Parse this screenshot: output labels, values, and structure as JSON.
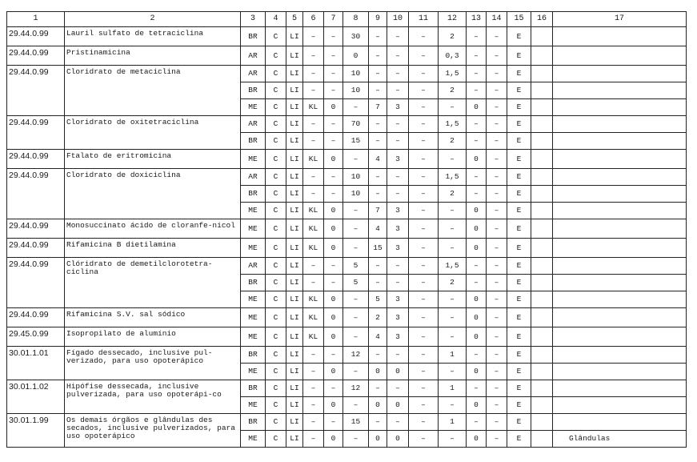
{
  "headers": [
    "1",
    "2",
    "3",
    "4",
    "5",
    "6",
    "7",
    "8",
    "9",
    "10",
    "11",
    "12",
    "13",
    "14",
    "15",
    "16",
    "17"
  ],
  "groups": [
    {
      "code": "29.44.0.99",
      "description": "Lauril sulfato de tetraciclina",
      "rows": [
        [
          "BR",
          "C",
          "LI",
          "–",
          "–",
          "30",
          "–",
          "–",
          "–",
          "2",
          "–",
          "–",
          "E",
          "",
          ""
        ]
      ]
    },
    {
      "code": "29.44.0.99",
      "description": "Pristinamicina",
      "rows": [
        [
          "AR",
          "C",
          "LI",
          "–",
          "–",
          "0",
          "–",
          "–",
          "–",
          "0,3",
          "–",
          "–",
          "E",
          "",
          ""
        ]
      ]
    },
    {
      "code": "29.44.0.99",
      "description": "Cloridrato de metaciclina",
      "rows": [
        [
          "AR",
          "C",
          "LI",
          "–",
          "–",
          "10",
          "–",
          "–",
          "–",
          "1,5",
          "–",
          "–",
          "E",
          "",
          ""
        ],
        [
          "BR",
          "C",
          "LI",
          "–",
          "–",
          "10",
          "–",
          "–",
          "–",
          "2",
          "–",
          "–",
          "E",
          "",
          ""
        ],
        [
          "ME",
          "C",
          "LI",
          "KL",
          "0",
          "–",
          "7",
          "3",
          "–",
          "–",
          "0",
          "–",
          "E",
          "",
          ""
        ]
      ]
    },
    {
      "code": "29.44.0.99",
      "description": "Cloridrato de oxitetraciclina",
      "rows": [
        [
          "AR",
          "C",
          "LI",
          "–",
          "–",
          "70",
          "–",
          "–",
          "–",
          "1,5",
          "–",
          "–",
          "E",
          "",
          ""
        ],
        [
          "BR",
          "C",
          "LI",
          "–",
          "–",
          "15",
          "–",
          "–",
          "–",
          "2",
          "–",
          "–",
          "E",
          "",
          ""
        ]
      ]
    },
    {
      "code": "29.44.0.99",
      "description": "Ftalato de eritromicina",
      "rows": [
        [
          "ME",
          "C",
          "LI",
          "KL",
          "0",
          "–",
          "4",
          "3",
          "–",
          "–",
          "0",
          "–",
          "E",
          "",
          ""
        ]
      ]
    },
    {
      "code": "29.44.0.99",
      "description": "Cloridrato de doxiciclina",
      "rows": [
        [
          "AR",
          "C",
          "LI",
          "–",
          "–",
          "10",
          "–",
          "–",
          "–",
          "1,5",
          "–",
          "–",
          "E",
          "",
          ""
        ],
        [
          "BR",
          "C",
          "LI",
          "–",
          "–",
          "10",
          "–",
          "–",
          "–",
          "2",
          "–",
          "–",
          "E",
          "",
          ""
        ],
        [
          "ME",
          "C",
          "LI",
          "KL",
          "0",
          "–",
          "7",
          "3",
          "–",
          "–",
          "0",
          "–",
          "E",
          "",
          ""
        ]
      ]
    },
    {
      "code": "29.44.0.99",
      "description": "Monosuccinato ácido de cloranfe-nicol",
      "rows": [
        [
          "ME",
          "C",
          "LI",
          "KL",
          "0",
          "–",
          "4",
          "3",
          "–",
          "–",
          "0",
          "–",
          "E",
          "",
          ""
        ]
      ]
    },
    {
      "code": "29.44.0.99",
      "description": "Rifamicina B dietilamina",
      "rows": [
        [
          "ME",
          "C",
          "LI",
          "KL",
          "0",
          "–",
          "15",
          "3",
          "–",
          "–",
          "0",
          "–",
          "E",
          "",
          ""
        ]
      ]
    },
    {
      "code": "29.44.0.99",
      "description": "Clóridrato de demetilclorotetra-ciclina",
      "rows": [
        [
          "AR",
          "C",
          "LI",
          "–",
          "–",
          "5",
          "–",
          "–",
          "–",
          "1,5",
          "–",
          "–",
          "E",
          "",
          ""
        ],
        [
          "BR",
          "C",
          "LI",
          "–",
          "–",
          "5",
          "–",
          "–",
          "–",
          "2",
          "–",
          "–",
          "E",
          "",
          ""
        ],
        [
          "ME",
          "C",
          "LI",
          "KL",
          "0",
          "–",
          "5",
          "3",
          "–",
          "–",
          "0",
          "–",
          "E",
          "",
          ""
        ]
      ]
    },
    {
      "code": "29.44.0.99",
      "description": "Rifamicina S.V. sal sódico",
      "rows": [
        [
          "ME",
          "C",
          "LI",
          "KL",
          "0",
          "–",
          "2",
          "3",
          "–",
          "–",
          "0",
          "–",
          "E",
          "",
          ""
        ]
      ]
    },
    {
      "code": "29.45.0.99",
      "description": "Isopropilato de alumínio",
      "rows": [
        [
          "ME",
          "C",
          "LI",
          "KL",
          "0",
          "–",
          "4",
          "3",
          "–",
          "–",
          "0",
          "–",
          "E",
          "",
          ""
        ]
      ]
    },
    {
      "code": "30.01.1.01",
      "description": "Fígado dessecado, inclusive pul-verizado, para uso opoterápico",
      "rows": [
        [
          "BR",
          "C",
          "LI",
          "–",
          "–",
          "12",
          "–",
          "–",
          "–",
          "1",
          "–",
          "–",
          "E",
          "",
          ""
        ],
        [
          "ME",
          "C",
          "LI",
          "–",
          "0",
          "–",
          "0",
          "0",
          "–",
          "–",
          "0",
          "–",
          "E",
          "",
          ""
        ]
      ]
    },
    {
      "code": "30.01.1.02",
      "description": "Hipófise dessecada, inclusive pulverizada, para uso opoterápi-co",
      "rows": [
        [
          "BR",
          "C",
          "LI",
          "–",
          "–",
          "12",
          "–",
          "–",
          "–",
          "1",
          "–",
          "–",
          "E",
          "",
          ""
        ],
        [
          "ME",
          "C",
          "LI",
          "–",
          "0",
          "–",
          "0",
          "0",
          "–",
          "–",
          "0",
          "–",
          "E",
          "",
          ""
        ]
      ]
    },
    {
      "code": "30.01.1.99",
      "description": "Os demais órgãos e glândulas des secados, inclusive pulverizados, para uso opoterápico",
      "rows": [
        [
          "BR",
          "C",
          "LI",
          "–",
          "–",
          "15",
          "–",
          "–",
          "–",
          "1",
          "–",
          "–",
          "E",
          "",
          ""
        ],
        [
          "ME",
          "C",
          "LI",
          "–",
          "0",
          "–",
          "0",
          "0",
          "–",
          "–",
          "0",
          "–",
          "E",
          "",
          "Glândulas"
        ]
      ]
    }
  ]
}
